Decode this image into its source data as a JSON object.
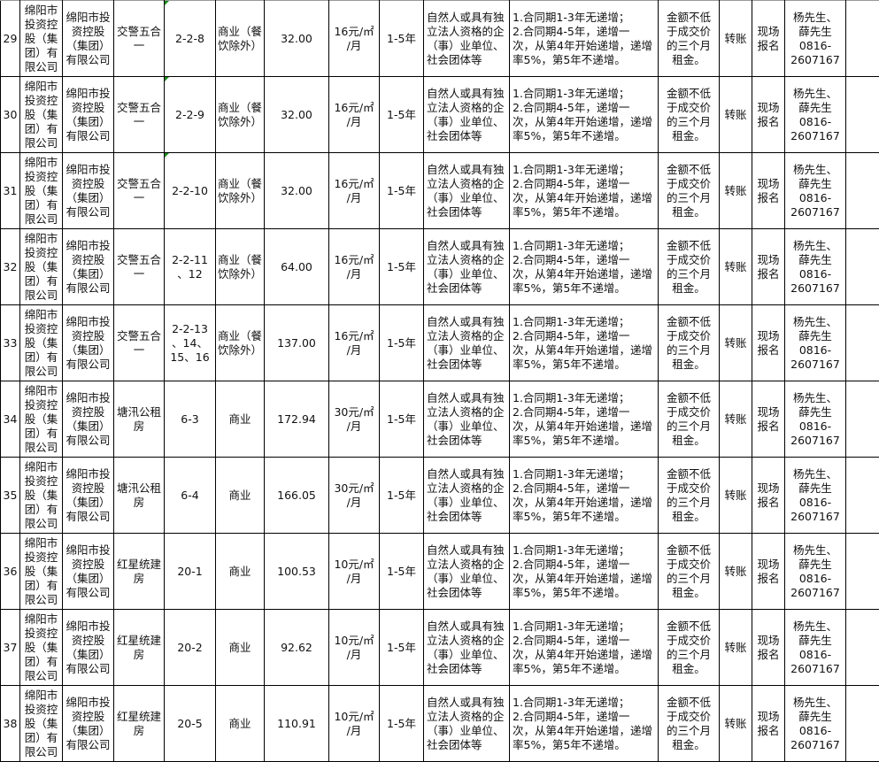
{
  "table": {
    "colors": {
      "comment_marker": "#1a8a1a"
    },
    "rows": [
      {
        "no": "29",
        "owner": "绵阳市\n投资控\n股（集\n团）有\n限公司",
        "org": "绵阳市投\n资控股\n（集团）\n有限公司",
        "location": "交警五合\n一",
        "unit": "2-2-8",
        "use": "商业（餐\n饮除外）",
        "area": "32.00",
        "price": "16元/㎡\n/月",
        "term": "1-5年",
        "qualification": "自然人或具有独\n立法人资格的企\n（事）业单位、\n社会团体等",
        "increase": "1.合同期1-3年无递增；\n2.合同期4-5年，递增一\n次，从第4年开始递增，递增\n率5%，第5年不递增。",
        "deposit": "金额不低\n于成交价\n的三个月\n租金。",
        "payment": "转账",
        "signup": "现场\n报名",
        "contact": "杨先生、\n薛先生\n0816-\n2607167",
        "note": "",
        "marker": true
      },
      {
        "no": "30",
        "owner": "绵阳市\n投资控\n股（集\n团）有\n限公司",
        "org": "绵阳市投\n资控股\n（集团）\n有限公司",
        "location": "交警五合\n一",
        "unit": "2-2-9",
        "use": "商业（餐\n饮除外）",
        "area": "32.00",
        "price": "16元/㎡\n/月",
        "term": "1-5年",
        "qualification": "自然人或具有独\n立法人资格的企\n（事）业单位、\n社会团体等",
        "increase": "1.合同期1-3年无递增；\n2.合同期4-5年，递增一\n次，从第4年开始递增，递增\n率5%，第5年不递增。",
        "deposit": "金额不低\n于成交价\n的三个月\n租金。",
        "payment": "转账",
        "signup": "现场\n报名",
        "contact": "杨先生、\n薛先生\n0816-\n2607167",
        "note": "",
        "marker": true
      },
      {
        "no": "31",
        "owner": "绵阳市\n投资控\n股（集\n团）有\n限公司",
        "org": "绵阳市投\n资控股\n（集团）\n有限公司",
        "location": "交警五合\n一",
        "unit": "2-2-10",
        "use": "商业（餐\n饮除外）",
        "area": "32.00",
        "price": "16元/㎡\n/月",
        "term": "1-5年",
        "qualification": "自然人或具有独\n立法人资格的企\n（事）业单位、\n社会团体等",
        "increase": "1.合同期1-3年无递增；\n2.合同期4-5年，递增一\n次，从第4年开始递增，递增\n率5%，第5年不递增。",
        "deposit": "金额不低\n于成交价\n的三个月\n租金。",
        "payment": "转账",
        "signup": "现场\n报名",
        "contact": "杨先生、\n薛先生\n0816-\n2607167",
        "note": "",
        "marker": true
      },
      {
        "no": "32",
        "owner": "绵阳市\n投资控\n股（集\n团）有\n限公司",
        "org": "绵阳市投\n资控股\n（集团）\n有限公司",
        "location": "交警五合\n一",
        "unit": "2-2-11\n、12",
        "use": "商业（餐\n饮除外）",
        "area": "64.00",
        "price": "16元/㎡\n/月",
        "term": "1-5年",
        "qualification": "自然人或具有独\n立法人资格的企\n（事）业单位、\n社会团体等",
        "increase": "1.合同期1-3年无递增；\n2.合同期4-5年，递增一\n次，从第4年开始递增，递增\n率5%，第5年不递增。",
        "deposit": "金额不低\n于成交价\n的三个月\n租金。",
        "payment": "转账",
        "signup": "现场\n报名",
        "contact": "杨先生、\n薛先生\n0816-\n2607167",
        "note": "",
        "marker": false
      },
      {
        "no": "33",
        "owner": "绵阳市\n投资控\n股（集\n团）有\n限公司",
        "org": "绵阳市投\n资控股\n（集团）\n有限公司",
        "location": "交警五合\n一",
        "unit": "2-2-13\n、14、\n15、16",
        "use": "商业（餐\n饮除外）",
        "area": "137.00",
        "price": "16元/㎡\n/月",
        "term": "1-5年",
        "qualification": "自然人或具有独\n立法人资格的企\n（事）业单位、\n社会团体等",
        "increase": "1.合同期1-3年无递增；\n2.合同期4-5年，递增一\n次，从第4年开始递增，递增\n率5%，第5年不递增。",
        "deposit": "金额不低\n于成交价\n的三个月\n租金。",
        "payment": "转账",
        "signup": "现场\n报名",
        "contact": "杨先生、\n薛先生\n0816-\n2607167",
        "note": "",
        "marker": false
      },
      {
        "no": "34",
        "owner": "绵阳市\n投资控\n股（集\n团）有\n限公司",
        "org": "绵阳市投\n资控股\n（集团）\n有限公司",
        "location": "塘汛公租\n房",
        "unit": "6-3",
        "use": "商业",
        "area": "172.94",
        "price": "30元/㎡\n/月",
        "term": "1-5年",
        "qualification": "自然人或具有独\n立法人资格的企\n（事）业单位、\n社会团体等",
        "increase": "1.合同期1-3年无递增；\n2.合同期4-5年，递增一\n次，从第4年开始递增，递增\n率5%，第5年不递增。",
        "deposit": "金额不低\n于成交价\n的三个月\n租金。",
        "payment": "转账",
        "signup": "现场\n报名",
        "contact": "杨先生、\n薛先生\n0816-\n2607167",
        "note": "",
        "marker": false
      },
      {
        "no": "35",
        "owner": "绵阳市\n投资控\n股（集\n团）有\n限公司",
        "org": "绵阳市投\n资控股\n（集团）\n有限公司",
        "location": "塘汛公租\n房",
        "unit": "6-4",
        "use": "商业",
        "area": "166.05",
        "price": "30元/㎡\n/月",
        "term": "1-5年",
        "qualification": "自然人或具有独\n立法人资格的企\n（事）业单位、\n社会团体等",
        "increase": "1.合同期1-3年无递增；\n2.合同期4-5年，递增一\n次，从第4年开始递增，递增\n率5%，第5年不递增。",
        "deposit": "金额不低\n于成交价\n的三个月\n租金。",
        "payment": "转账",
        "signup": "现场\n报名",
        "contact": "杨先生、\n薛先生\n0816-\n2607167",
        "note": "",
        "marker": false
      },
      {
        "no": "36",
        "owner": "绵阳市\n投资控\n股（集\n团）有\n限公司",
        "org": "绵阳市投\n资控股\n（集团）\n有限公司",
        "location": "红星统建\n房",
        "unit": "20-1",
        "use": "商业",
        "area": "100.53",
        "price": "10元/㎡\n/月",
        "term": "1-5年",
        "qualification": "自然人或具有独\n立法人资格的企\n（事）业单位、\n社会团体等",
        "increase": "1.合同期1-3年无递增；\n2.合同期4-5年，递增一\n次，从第4年开始递增，递增\n率5%，第5年不递增。",
        "deposit": "金额不低\n于成交价\n的三个月\n租金。",
        "payment": "转账",
        "signup": "现场\n报名",
        "contact": "杨先生、\n薛先生\n0816-\n2607167",
        "note": "",
        "marker": false
      },
      {
        "no": "37",
        "owner": "绵阳市\n投资控\n股（集\n团）有\n限公司",
        "org": "绵阳市投\n资控股\n（集团）\n有限公司",
        "location": "红星统建\n房",
        "unit": "20-2",
        "use": "商业",
        "area": "92.62",
        "price": "10元/㎡\n/月",
        "term": "1-5年",
        "qualification": "自然人或具有独\n立法人资格的企\n（事）业单位、\n社会团体等",
        "increase": "1.合同期1-3年无递增；\n2.合同期4-5年，递增一\n次，从第4年开始递增，递增\n率5%，第5年不递增。",
        "deposit": "金额不低\n于成交价\n的三个月\n租金。",
        "payment": "转账",
        "signup": "现场\n报名",
        "contact": "杨先生、\n薛先生\n0816-\n2607167",
        "note": "",
        "marker": false
      },
      {
        "no": "38",
        "owner": "绵阳市\n投资控\n股（集\n团）有\n限公司",
        "org": "绵阳市投\n资控股\n（集团）\n有限公司",
        "location": "红星统建\n房",
        "unit": "20-5",
        "use": "商业",
        "area": "110.91",
        "price": "10元/㎡\n/月",
        "term": "1-5年",
        "qualification": "自然人或具有独\n立法人资格的企\n（事）业单位、\n社会团体等",
        "increase": "1.合同期1-3年无递增；\n2.合同期4-5年，递增一\n次，从第4年开始递增，递增\n率5%，第5年不递增。",
        "deposit": "金额不低\n于成交价\n的三个月\n租金。",
        "payment": "转账",
        "signup": "现场\n报名",
        "contact": "杨先生、\n薛先生\n0816-\n2607167",
        "note": "",
        "marker": false
      }
    ]
  }
}
